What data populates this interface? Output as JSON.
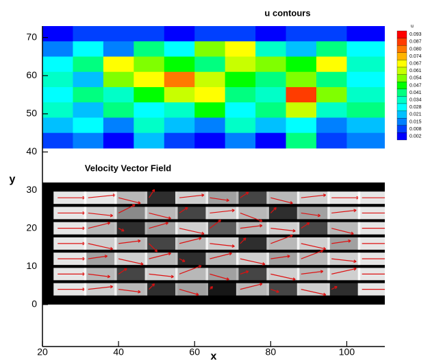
{
  "chart_data": {
    "type": "contour_vector",
    "xlabel": "x",
    "ylabel": "y",
    "xlim": [
      20,
      110
    ],
    "ylim": [
      -11,
      73
    ],
    "xticks": [
      20,
      40,
      60,
      80,
      100
    ],
    "yticks": [
      0,
      10,
      20,
      30,
      40,
      50,
      60,
      70
    ],
    "contour": {
      "title": "u contours",
      "legend_title": "u",
      "levels": [
        0.093,
        0.087,
        {
          "value": 0.08,
          "label": "0.080"
        },
        0.074,
        0.067,
        0.061,
        0.054,
        0.047,
        0.041,
        0.034,
        0.028,
        0.021,
        0.015,
        0.008,
        0.002
      ],
      "colors": [
        "#ff0000",
        "#ff3c00",
        "#ff7800",
        "#ffb400",
        "#ffff00",
        "#c8ff00",
        "#80ff00",
        "#00ff00",
        "#00ff80",
        "#00ffc8",
        "#00ffff",
        "#00c0ff",
        "#0080ff",
        "#0040ff",
        "#0000ff"
      ],
      "x": [
        24,
        32,
        40,
        48,
        56,
        64,
        72,
        80,
        88,
        96,
        104
      ],
      "y": [
        71,
        67,
        63,
        59,
        55,
        51,
        47,
        43
      ],
      "u": [
        [
          0.006,
          0.008,
          0.01,
          0.008,
          0.006,
          0.01,
          0.008,
          0.006,
          0.01,
          0.008,
          0.006
        ],
        [
          0.015,
          0.03,
          0.02,
          0.041,
          0.028,
          0.054,
          0.067,
          0.034,
          0.021,
          0.041,
          0.028
        ],
        [
          0.028,
          0.041,
          0.067,
          0.054,
          0.047,
          0.041,
          0.061,
          0.054,
          0.047,
          0.067,
          0.034
        ],
        [
          0.034,
          0.021,
          0.054,
          0.067,
          0.08,
          0.061,
          0.047,
          0.041,
          0.054,
          0.041,
          0.028
        ],
        [
          0.028,
          0.041,
          0.034,
          0.047,
          0.061,
          0.067,
          0.041,
          0.034,
          0.087,
          0.054,
          0.034
        ],
        [
          0.034,
          0.021,
          0.041,
          0.028,
          0.034,
          0.047,
          0.028,
          0.041,
          0.061,
          0.034,
          0.041
        ],
        [
          0.021,
          0.028,
          0.015,
          0.034,
          0.021,
          0.015,
          0.034,
          0.021,
          0.028,
          0.015,
          0.021
        ],
        [
          0.008,
          0.015,
          0.006,
          0.021,
          0.008,
          0.006,
          0.015,
          0.006,
          0.041,
          0.008,
          0.015
        ]
      ]
    },
    "vector_field": {
      "title": "Velocity Vector Field",
      "color": "#dd1111",
      "background": "#000000",
      "x": [
        24,
        32,
        40,
        48,
        56,
        64,
        72,
        80,
        88,
        96,
        104
      ],
      "y": [
        28,
        24,
        20,
        16,
        12,
        8,
        4
      ],
      "u": [
        [
          1,
          1,
          0.8,
          0.2,
          0.9,
          0.7,
          0.3,
          0.8,
          0.9,
          1,
          1
        ],
        [
          1,
          0.9,
          0.6,
          0.8,
          0.3,
          0.9,
          0.8,
          0.2,
          0.7,
          0.9,
          1
        ],
        [
          1,
          0.8,
          0.2,
          0.7,
          0.9,
          0.4,
          0.8,
          0.9,
          0.3,
          0.8,
          1
        ],
        [
          1,
          0.9,
          0.8,
          0.3,
          0.8,
          0.9,
          0.2,
          0.8,
          0.9,
          0.7,
          1
        ],
        [
          1,
          0.7,
          0.9,
          0.8,
          0.2,
          0.8,
          0.9,
          0.7,
          0.8,
          0.9,
          1
        ],
        [
          1,
          0.8,
          0.3,
          0.9,
          0.8,
          0.7,
          0.3,
          0.9,
          0.8,
          0.9,
          1
        ],
        [
          1,
          0.9,
          0.8,
          0.2,
          0.7,
          0.1,
          0.8,
          0.3,
          0.9,
          0.2,
          1
        ]
      ],
      "v": [
        [
          0,
          0.1,
          -0.2,
          0.3,
          0.1,
          -0.1,
          0.2,
          -0.2,
          0.1,
          0,
          0
        ],
        [
          0,
          -0.1,
          0.3,
          -0.2,
          0.2,
          0.1,
          -0.3,
          0.2,
          -0.1,
          0.1,
          0
        ],
        [
          0,
          0.2,
          -0.1,
          0.2,
          -0.2,
          0.3,
          0.1,
          -0.1,
          0.2,
          -0.2,
          0
        ],
        [
          0,
          -0.2,
          0.1,
          -0.3,
          0.2,
          -0.1,
          0.2,
          0.3,
          -0.2,
          0.1,
          0
        ],
        [
          0,
          0.1,
          -0.2,
          0.2,
          -0.1,
          0.2,
          -0.2,
          0.1,
          0.3,
          -0.1,
          0
        ],
        [
          0,
          -0.1,
          0.2,
          -0.1,
          0.3,
          -0.2,
          0.1,
          -0.2,
          0.1,
          0.2,
          0
        ],
        [
          0,
          0.1,
          -0.1,
          0.2,
          -0.2,
          0.1,
          0.2,
          -0.1,
          -0.2,
          0.1,
          0
        ]
      ]
    }
  }
}
